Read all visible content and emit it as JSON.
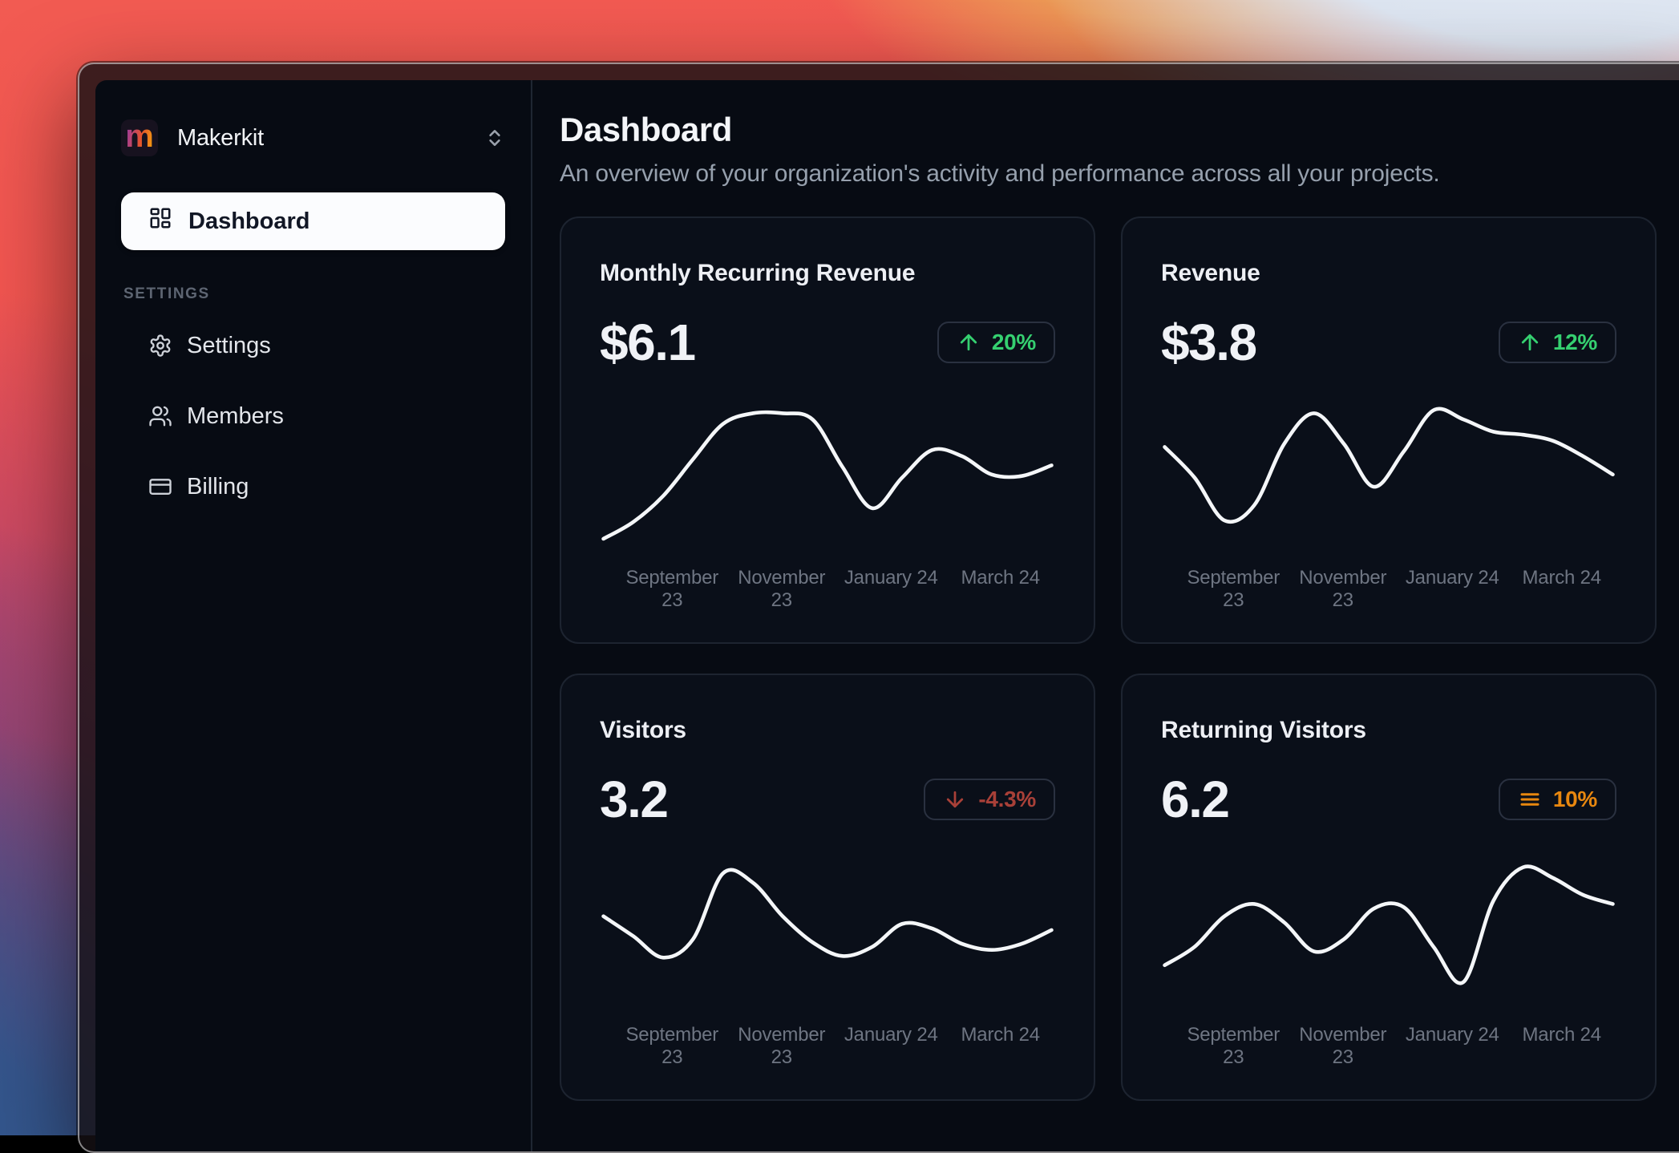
{
  "sidebar": {
    "team_name": "Makerkit",
    "team_logo_letter": "m",
    "dashboard_nav_label": "Dashboard",
    "section_label": "SETTINGS",
    "settings_nav": [
      {
        "label": "Settings"
      },
      {
        "label": "Members"
      },
      {
        "label": "Billing"
      }
    ]
  },
  "header": {
    "title": "Dashboard",
    "subtitle": "An overview of your organization's activity and performance across all your projects."
  },
  "theme": {
    "positive_color": "#35d070",
    "negative_color": "#a84038",
    "neutral_color": "#e8870f",
    "chart_line_color": "#f4f6f8",
    "card_border_color": "#1d2430",
    "active_nav_bg": "#fbfcfe",
    "logo_gradient": [
      "#9b3a9e",
      "#e4532e",
      "#f5a00c"
    ]
  },
  "cards": [
    {
      "title": "Monthly Recurring Revenue",
      "value": "$6.1",
      "trend_label": "20%",
      "trend_direction": "up",
      "trend_color": "#35d070"
    },
    {
      "title": "Revenue",
      "value": "$3.8",
      "trend_label": "12%",
      "trend_direction": "up",
      "trend_color": "#35d070"
    },
    {
      "title": "Visitors",
      "value": "3.2",
      "trend_label": "-4.3%",
      "trend_direction": "down",
      "trend_color": "#a84038"
    },
    {
      "title": "Returning Visitors",
      "value": "6.2",
      "trend_label": "10%",
      "trend_direction": "neutral",
      "trend_color": "#e8870f"
    }
  ],
  "chart_data": [
    {
      "type": "line",
      "title": "Monthly Recurring Revenue",
      "x_ticks": [
        "September 23",
        "November 23",
        "January 24",
        "March 24"
      ],
      "x_range": [
        "September 23",
        "March 24"
      ],
      "grid": false,
      "legend": false,
      "y_axis_shown": false,
      "series": [
        {
          "name": "Monthly Recurring Revenue",
          "values_relative": [
            8,
            19,
            36,
            60,
            83,
            90,
            90,
            86,
            55,
            28,
            48,
            66,
            62,
            50,
            49,
            56
          ]
        }
      ]
    },
    {
      "type": "line",
      "title": "Revenue",
      "x_ticks": [
        "September 23",
        "November 23",
        "January 24",
        "March 24"
      ],
      "x_range": [
        "September 23",
        "March 24"
      ],
      "grid": false,
      "legend": false,
      "y_axis_shown": false,
      "series": [
        {
          "name": "Revenue",
          "values_relative": [
            68,
            48,
            20,
            30,
            70,
            90,
            70,
            42,
            65,
            92,
            86,
            78,
            76,
            72,
            62,
            50
          ]
        }
      ]
    },
    {
      "type": "line",
      "title": "Visitors",
      "x_ticks": [
        "September 23",
        "November 23",
        "January 24",
        "March 24"
      ],
      "x_range": [
        "September 23",
        "March 24"
      ],
      "grid": false,
      "legend": false,
      "y_axis_shown": false,
      "series": [
        {
          "name": "Visitors",
          "values_relative": [
            60,
            47,
            33,
            45,
            88,
            82,
            60,
            43,
            34,
            40,
            55,
            52,
            42,
            38,
            42,
            51
          ]
        }
      ]
    },
    {
      "type": "line",
      "title": "Returning Visitors",
      "x_ticks": [
        "September 23",
        "November 23",
        "January 24",
        "March 24"
      ],
      "x_range": [
        "September 23",
        "March 24"
      ],
      "grid": false,
      "legend": false,
      "y_axis_shown": false,
      "series": [
        {
          "name": "Returning Visitors",
          "values_relative": [
            28,
            40,
            60,
            68,
            56,
            37,
            45,
            65,
            66,
            40,
            17,
            70,
            92,
            85,
            74,
            68
          ]
        }
      ]
    }
  ]
}
